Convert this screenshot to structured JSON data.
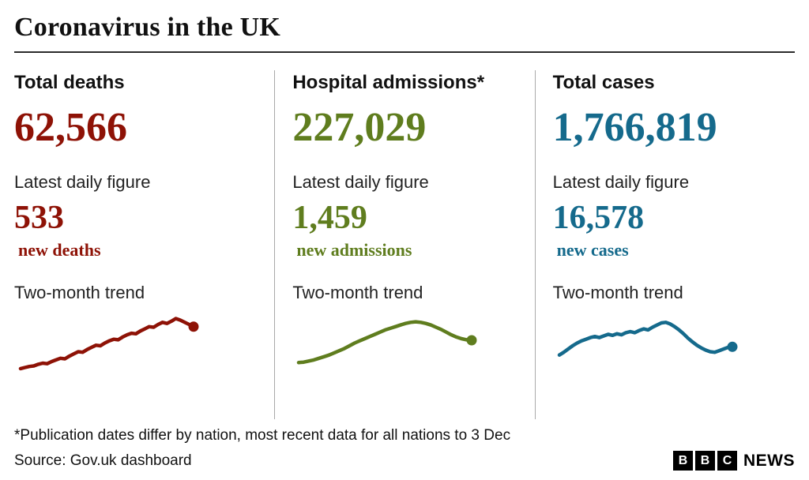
{
  "page": {
    "title": "Coronavirus in the UK",
    "footnote": "*Publication dates differ by nation, most recent data for all nations to 3 Dec",
    "source": "Source: Gov.uk dashboard"
  },
  "brand": {
    "letters": [
      "B",
      "B",
      "C"
    ],
    "news": "NEWS"
  },
  "stats": [
    {
      "heading": "Total deaths",
      "total": "62,566",
      "latest_label": "Latest daily figure",
      "latest_value": "533",
      "latest_unit": "new deaths",
      "trend_label": "Two-month trend",
      "color": "#8e1206"
    },
    {
      "heading": "Hospital admissions*",
      "total": "227,029",
      "latest_label": "Latest daily figure",
      "latest_value": "1,459",
      "latest_unit": "new admissions",
      "trend_label": "Two-month trend",
      "color": "#5f7d1e"
    },
    {
      "heading": "Total cases",
      "total": "1,766,819",
      "latest_label": "Latest daily figure",
      "latest_value": "16,578",
      "latest_unit": "new cases",
      "trend_label": "Two-month trend",
      "color": "#156a8c"
    }
  ],
  "chart_data": [
    {
      "type": "line",
      "title": "Total deaths — Two-month trend",
      "color": "#8e1206",
      "legend": "none",
      "axes_visible": false,
      "y_range": [
        0,
        100
      ],
      "values": [
        3,
        5,
        7,
        8,
        11,
        13,
        12,
        16,
        19,
        22,
        21,
        26,
        30,
        34,
        33,
        38,
        42,
        46,
        45,
        50,
        54,
        57,
        56,
        61,
        65,
        68,
        67,
        72,
        76,
        80,
        79,
        84,
        88,
        86,
        90,
        95,
        92,
        88,
        84,
        80
      ]
    },
    {
      "type": "line",
      "title": "Hospital admissions — Two-month trend",
      "color": "#5f7d1e",
      "legend": "none",
      "axes_visible": false,
      "y_range": [
        0,
        100
      ],
      "values": [
        14,
        15,
        17,
        19,
        22,
        25,
        28,
        32,
        36,
        40,
        45,
        50,
        54,
        58,
        62,
        66,
        70,
        74,
        77,
        80,
        83,
        86,
        88,
        89,
        88,
        86,
        83,
        79,
        75,
        70,
        65,
        61,
        58,
        56,
        55
      ]
    },
    {
      "type": "line",
      "title": "Total cases — Two-month trend",
      "color": "#156a8c",
      "legend": "none",
      "axes_visible": false,
      "y_range": [
        0,
        100
      ],
      "values": [
        28,
        33,
        39,
        45,
        50,
        54,
        57,
        60,
        62,
        60,
        63,
        66,
        64,
        67,
        65,
        69,
        71,
        69,
        73,
        76,
        74,
        79,
        83,
        87,
        88,
        85,
        80,
        74,
        67,
        59,
        52,
        46,
        41,
        37,
        34,
        33,
        36,
        39,
        42,
        43
      ]
    }
  ]
}
